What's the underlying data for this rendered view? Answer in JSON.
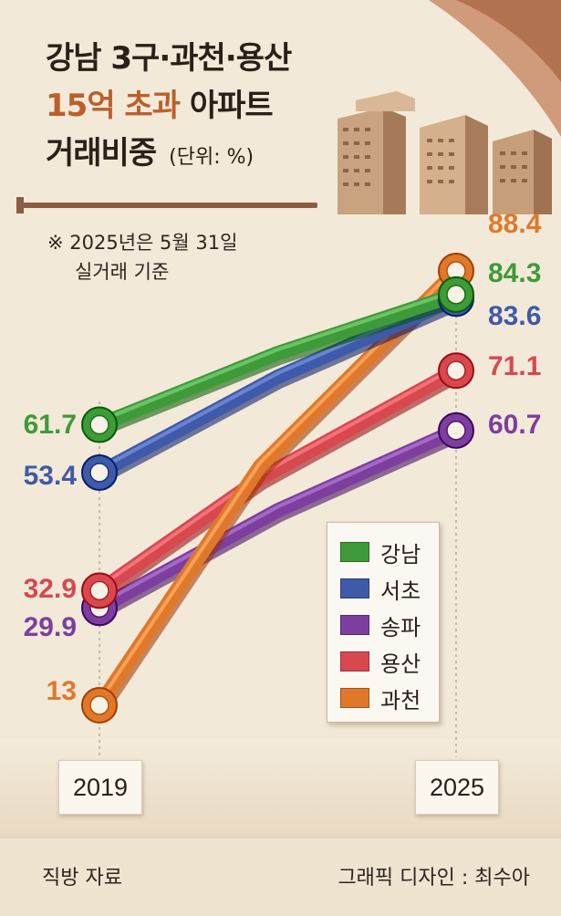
{
  "header": {
    "title_line1": "강남 3구·과천·용산",
    "title_line2_accent": "15억 초과",
    "title_line2_rest": "아파트",
    "title_line3": "거래비중",
    "unit": "(단위: %)"
  },
  "note": {
    "line1": "※ 2025년은 5월 31일",
    "line2": "실거래 기준"
  },
  "footer": {
    "source": "직방 자료",
    "credit": "그래픽 디자인 : 최수아"
  },
  "chart_data": {
    "type": "line",
    "x": [
      "2019",
      "2025"
    ],
    "series": [
      {
        "name": "강남",
        "values": [
          61.7,
          84.3
        ],
        "labels": [
          "61.7",
          "84.3"
        ],
        "color": "#3f9a3a"
      },
      {
        "name": "서초",
        "values": [
          53.4,
          83.6
        ],
        "labels": [
          "53.4",
          "83.6"
        ],
        "color": "#3f5aa8"
      },
      {
        "name": "송파",
        "values": [
          29.9,
          60.7
        ],
        "labels": [
          "29.9",
          "60.7"
        ],
        "color": "#7c3f9e"
      },
      {
        "name": "용산",
        "values": [
          32.9,
          71.1
        ],
        "labels": [
          "32.9",
          "71.1"
        ],
        "color": "#d8484f"
      },
      {
        "name": "과천",
        "values": [
          13,
          88.4
        ],
        "labels": [
          "13",
          "88.4"
        ],
        "color": "#e0782c"
      }
    ],
    "legend_position": "bottom-right",
    "grid": false
  }
}
